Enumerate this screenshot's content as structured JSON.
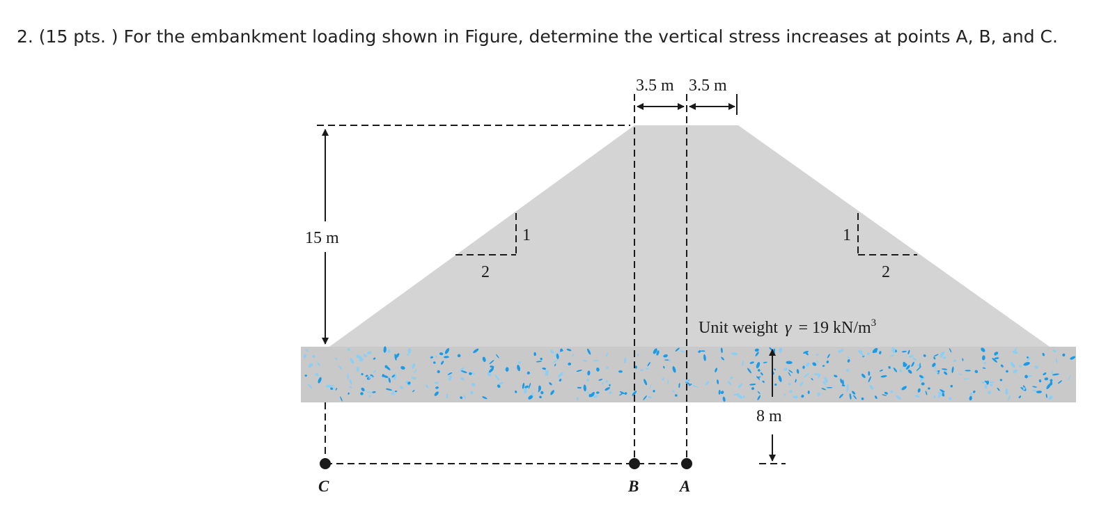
{
  "question": {
    "text": "2. (15 pts. ) For the embankment loading shown in Figure, determine the vertical stress increases at points A, B, and C."
  },
  "figure": {
    "top_width_left": "3.5 m",
    "top_width_right": "3.5 m",
    "height": "15 m",
    "slope_left_vertical": "1",
    "slope_left_horizontal": "2",
    "slope_right_vertical": "1",
    "slope_right_horizontal": "2",
    "unit_weight_prefix": "Unit weight",
    "unit_weight_symbol": "γ",
    "unit_weight_value": "= 19 kN/m",
    "unit_weight_exp": "3",
    "depth": "8 m",
    "point_c": "C",
    "point_b": "B",
    "point_a": "A",
    "colors": {
      "embankment": "#d4d4d4",
      "soil": "#c9c9c9",
      "speckle": "#1a9be8"
    }
  }
}
